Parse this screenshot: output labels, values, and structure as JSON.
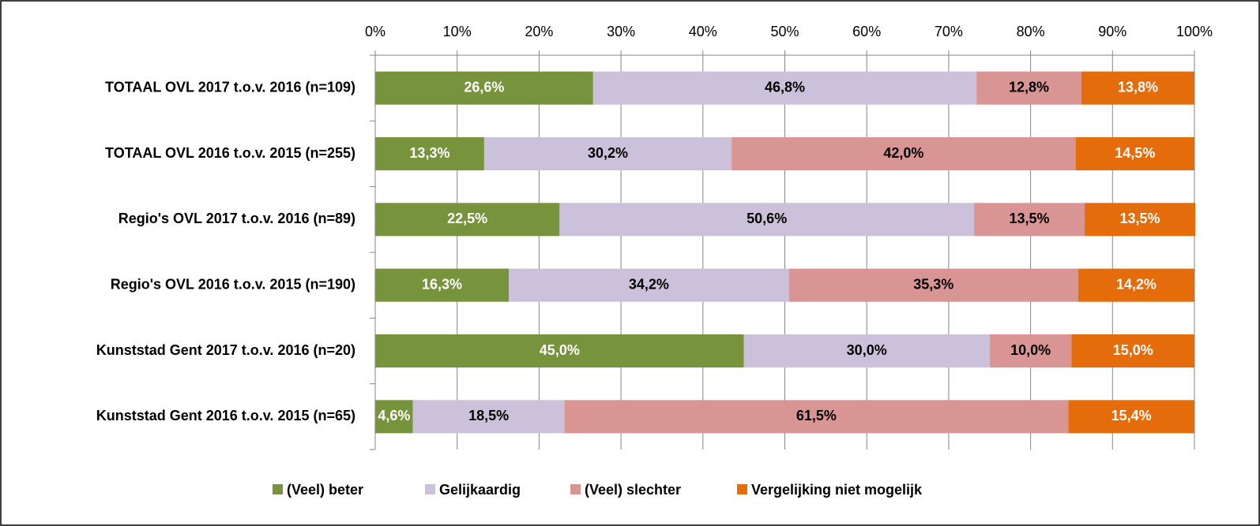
{
  "chart_data": {
    "type": "stacked-bar-horizontal",
    "categories": [
      "TOTAAL OVL 2017 t.o.v. 2016 (n=109)",
      "TOTAAL OVL 2016 t.o.v. 2015 (n=255)",
      "Regio's OVL 2017 t.o.v. 2016 (n=89)",
      "Regio's OVL 2016 t.o.v. 2015 (n=190)",
      "Kunststad Gent 2017 t.o.v. 2016 (n=20)",
      "Kunststad Gent 2016 t.o.v. 2015 (n=65)"
    ],
    "series": [
      {
        "name": "(Veel) beter",
        "color": "#77933c",
        "label_color": "#ffffff",
        "values": [
          26.6,
          13.3,
          22.5,
          16.3,
          45.0,
          4.6
        ],
        "value_labels": [
          "26,6%",
          "13,3%",
          "22,5%",
          "16,3%",
          "45,0%",
          "4,6%"
        ]
      },
      {
        "name": "Gelijkaardig",
        "color": "#ccc1da",
        "label_color": "#000000",
        "values": [
          46.8,
          30.2,
          50.6,
          34.2,
          30.0,
          18.5
        ],
        "value_labels": [
          "46,8%",
          "30,2%",
          "50,6%",
          "34,2%",
          "30,0%",
          "18,5%"
        ]
      },
      {
        "name": "(Veel) slechter",
        "color": "#d99594",
        "label_color": "#000000",
        "values": [
          12.8,
          42.0,
          13.5,
          35.3,
          10.0,
          61.5
        ],
        "value_labels": [
          "12,8%",
          "42,0%",
          "13,5%",
          "35,3%",
          "10,0%",
          "61,5%"
        ]
      },
      {
        "name": "Vergelijking niet mogelijk",
        "color": "#e46c0a",
        "label_color": "#ffffff",
        "values": [
          13.8,
          14.5,
          13.5,
          14.2,
          15.0,
          15.4
        ],
        "value_labels": [
          "13,8%",
          "14,5%",
          "13,5%",
          "14,2%",
          "15,0%",
          "15,4%"
        ]
      }
    ],
    "xlim": [
      0,
      100
    ],
    "xticks": [
      {
        "value": 0,
        "label": "0%"
      },
      {
        "value": 10,
        "label": "10%"
      },
      {
        "value": 20,
        "label": "20%"
      },
      {
        "value": 30,
        "label": "30%"
      },
      {
        "value": 40,
        "label": "40%"
      },
      {
        "value": 50,
        "label": "50%"
      },
      {
        "value": 60,
        "label": "60%"
      },
      {
        "value": 70,
        "label": "70%"
      },
      {
        "value": 80,
        "label": "80%"
      },
      {
        "value": 90,
        "label": "90%"
      },
      {
        "value": 100,
        "label": "100%"
      }
    ],
    "grid": true,
    "legend": "bottom"
  }
}
